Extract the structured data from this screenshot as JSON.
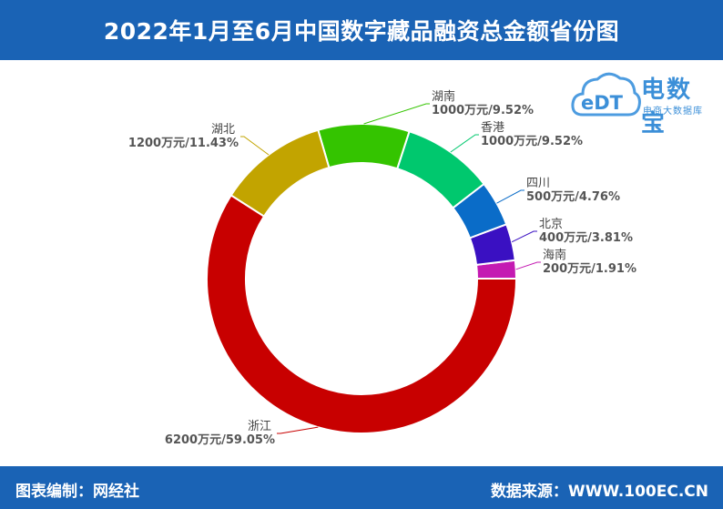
{
  "header": {
    "title": "2022年1月至6月中国数字藏品融资总金额省份图"
  },
  "footer": {
    "left": "图表编制：网经社",
    "right": "数据来源：WWW.100EC.CN"
  },
  "logo": {
    "mark": "eDT",
    "brand": "电数宝",
    "sub": "电商大数据库"
  },
  "chart_data": {
    "type": "pie",
    "donut": true,
    "title": "2022年1月至6月中国数字藏品融资总金额省份图",
    "unit": "万元",
    "slices": [
      {
        "name": "海南",
        "value": 200,
        "label": "200万元/1.91%",
        "color": "#c41ab2"
      },
      {
        "name": "北京",
        "value": 400,
        "label": "400万元/3.81%",
        "color": "#3a10c2"
      },
      {
        "name": "四川",
        "value": 500,
        "label": "500万元/4.76%",
        "color": "#0a6cc8"
      },
      {
        "name": "香港",
        "value": 1000,
        "label": "1000万元/9.52%",
        "color": "#00c86e"
      },
      {
        "name": "湖南",
        "value": 1000,
        "label": "1000万元/9.52%",
        "color": "#34c400"
      },
      {
        "name": "湖北",
        "value": 1200,
        "label": "1200万元/11.43%",
        "color": "#c2a400"
      },
      {
        "name": "浙江",
        "value": 6200,
        "label": "6200万元/59.05%",
        "color": "#c80000"
      }
    ]
  }
}
